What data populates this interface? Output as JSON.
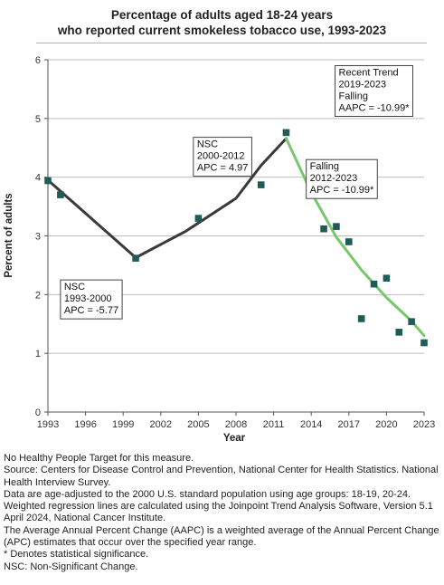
{
  "chart_data": {
    "type": "scatter",
    "title_lines": [
      "Percentage of adults aged 18-24 years",
      "who reported current smokeless tobacco use, 1993-2023"
    ],
    "xlabel": "Year",
    "ylabel": "Percent of adults",
    "xlim": [
      1993,
      2023
    ],
    "ylim": [
      0,
      6
    ],
    "x_ticks": [
      1993,
      1996,
      1999,
      2002,
      2005,
      2008,
      2011,
      2014,
      2017,
      2020,
      2023
    ],
    "y_ticks": [
      0,
      1,
      2,
      3,
      4,
      5,
      6
    ],
    "grid": "horizontal",
    "series": [
      {
        "type": "scatter",
        "marker": "square",
        "color": "#1f5c57",
        "points": [
          {
            "x": 1993,
            "y": 3.94
          },
          {
            "x": 1994,
            "y": 3.7
          },
          {
            "x": 2000,
            "y": 2.62
          },
          {
            "x": 2005,
            "y": 3.3
          },
          {
            "x": 2010,
            "y": 3.87
          },
          {
            "x": 2012,
            "y": 4.76
          },
          {
            "x": 2015,
            "y": 3.12
          },
          {
            "x": 2016,
            "y": 3.16
          },
          {
            "x": 2017,
            "y": 2.9
          },
          {
            "x": 2018,
            "y": 1.59
          },
          {
            "x": 2019,
            "y": 2.18
          },
          {
            "x": 2020,
            "y": 2.28
          },
          {
            "x": 2021,
            "y": 1.36
          },
          {
            "x": 2022,
            "y": 1.54
          },
          {
            "x": 2023,
            "y": 1.18
          }
        ]
      }
    ],
    "trend_segments": [
      {
        "color": "#3a3a3a",
        "points": [
          [
            1993,
            3.95
          ],
          [
            2000,
            2.63
          ]
        ]
      },
      {
        "color": "#3a3a3a",
        "points": [
          [
            2000,
            2.63
          ],
          [
            2004,
            3.08
          ],
          [
            2008,
            3.64
          ],
          [
            2010,
            4.2
          ],
          [
            2012,
            4.66
          ]
        ]
      },
      {
        "color": "#77c76c",
        "points": [
          [
            2012,
            4.66
          ],
          [
            2014,
            3.74
          ],
          [
            2016,
            2.98
          ],
          [
            2018,
            2.42
          ],
          [
            2020,
            1.95
          ],
          [
            2022,
            1.55
          ],
          [
            2023,
            1.3
          ]
        ]
      }
    ],
    "annotations": [
      {
        "lines": [
          "NSC",
          "1993-2000",
          "APC = -5.77"
        ],
        "anchor": [
          1994,
          2.25
        ]
      },
      {
        "lines": [
          "NSC",
          "2000-2012",
          "APC =  4.97"
        ],
        "anchor": [
          2004.6,
          4.68
        ]
      },
      {
        "lines": [
          "Falling",
          "2012-2023",
          "APC = -10.99*"
        ],
        "anchor": [
          2013.6,
          4.3
        ]
      },
      {
        "lines": [
          "Recent Trend",
          "2019-2023",
          "Falling",
          "AAPC = -10.99*"
        ],
        "anchor": [
          2015.9,
          5.9
        ]
      }
    ]
  },
  "notes": [
    "No Healthy People Target for this measure.",
    "Source: Centers for Disease Control and Prevention, National Center for Health Statistics. National Health Interview Survey.",
    "Data are age-adjusted to the 2000 U.S. standard population using age groups: 18-19, 20-24.",
    "Weighted regression lines are calculated using the Joinpoint Trend Analysis Software, Version 5.1 April 2024, National Cancer Institute.",
    "The Average Annual Percent Change (AAPC) is a weighted average of the Annual Percent Change (APC) estimates that occur over the specified year range.",
    "* Denotes statistical significance.",
    "NSC: Non-Significant Change."
  ]
}
